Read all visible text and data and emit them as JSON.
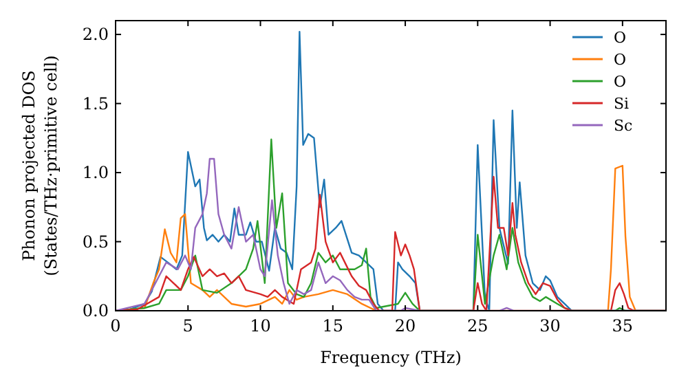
{
  "chart_data": {
    "type": "line",
    "xlabel": "Frequency (THz)",
    "ylabel": "Phonon projected DOS\n(States/THz·primitive cell)",
    "xlim": [
      0,
      38
    ],
    "ylim": [
      0,
      2.1
    ],
    "xticks": [
      0,
      5,
      10,
      15,
      20,
      25,
      30,
      35
    ],
    "yticks": [
      {
        "value": 0,
        "label": "0.0"
      },
      {
        "value": 0.5,
        "label": "0.5"
      },
      {
        "value": 1,
        "label": "1.0"
      },
      {
        "value": 1.5,
        "label": "1.5"
      },
      {
        "value": 2,
        "label": "2.0"
      }
    ],
    "grid": false,
    "legend": "top right",
    "marker": "none",
    "line_style": "solid",
    "series": [
      {
        "name": "O",
        "color": "#1f77b4",
        "x": [
          0,
          1,
          2,
          2.5,
          3.1,
          3.6,
          4.2,
          4.6,
          5,
          5.5,
          5.8,
          6.1,
          6.3,
          6.7,
          7.1,
          7.5,
          7.9,
          8.2,
          8.5,
          9,
          9.3,
          9.7,
          10.1,
          10.6,
          11,
          11.4,
          11.8,
          12.2,
          12.5,
          12.7,
          12.95,
          13.3,
          13.7,
          14.1,
          14.4,
          14.7,
          15.2,
          15.6,
          16.3,
          16.8,
          17.3,
          17.8,
          18.1,
          18.5,
          19.3,
          19.5,
          19.8,
          20.3,
          20.7,
          21,
          24.7,
          25,
          25.5,
          25.8,
          26.1,
          26.5,
          27.1,
          27.4,
          27.7,
          27.9,
          28.3,
          28.8,
          29.3,
          29.7,
          30,
          30.5,
          31,
          31.5,
          38
        ],
        "values": [
          0,
          0.01,
          0.05,
          0.14,
          0.39,
          0.35,
          0.3,
          0.4,
          1.15,
          0.9,
          0.95,
          0.6,
          0.51,
          0.55,
          0.5,
          0.55,
          0.5,
          0.74,
          0.55,
          0.55,
          0.64,
          0.5,
          0.5,
          0.29,
          0.6,
          0.45,
          0.42,
          0.3,
          0.9,
          2.02,
          1.2,
          1.28,
          1.25,
          0.75,
          0.95,
          0.55,
          0.6,
          0.65,
          0.42,
          0.4,
          0.35,
          0.3,
          0.05,
          0,
          0,
          0.35,
          0.3,
          0.25,
          0.2,
          0,
          0,
          1.2,
          0.1,
          0,
          1.38,
          0.6,
          0.34,
          1.45,
          0.6,
          0.93,
          0.4,
          0.2,
          0.15,
          0.25,
          0.22,
          0.1,
          0.05,
          0,
          0
        ]
      },
      {
        "name": "O",
        "color": "#ff7f0e",
        "x": [
          0,
          2,
          2.6,
          3,
          3.4,
          3.8,
          4.2,
          4.5,
          4.8,
          5.2,
          6,
          6.5,
          7,
          8,
          9,
          10,
          11,
          11.5,
          12,
          12.5,
          13,
          14,
          15,
          16,
          17,
          18,
          34,
          34.2,
          34.5,
          35,
          35.2,
          35.5,
          35.9,
          38
        ],
        "values": [
          0,
          0.02,
          0.2,
          0.3,
          0.59,
          0.42,
          0.35,
          0.67,
          0.7,
          0.2,
          0.15,
          0.1,
          0.15,
          0.05,
          0.03,
          0.05,
          0.1,
          0.05,
          0.15,
          0.08,
          0.1,
          0.12,
          0.15,
          0.12,
          0.05,
          0,
          0,
          0.3,
          1.03,
          1.05,
          0.54,
          0.1,
          0,
          0
        ]
      },
      {
        "name": "O",
        "color": "#2ca02c",
        "x": [
          0,
          2,
          3,
          3.5,
          4.5,
          5,
          5.5,
          6,
          7,
          8,
          9,
          9.5,
          9.8,
          10.3,
          10.75,
          11.1,
          11.5,
          11.9,
          12.5,
          13,
          13.5,
          14,
          14.5,
          15,
          15.5,
          16,
          16.5,
          17,
          17.3,
          17.6,
          18,
          19.5,
          20,
          20.5,
          21,
          24.7,
          25,
          25.5,
          26.1,
          26.5,
          27,
          27.4,
          27.8,
          28.3,
          28.8,
          29.3,
          29.7,
          30.5,
          31,
          31.5,
          34.5,
          34.8,
          35.2,
          38
        ],
        "values": [
          0,
          0.02,
          0.05,
          0.15,
          0.15,
          0.25,
          0.4,
          0.15,
          0.13,
          0.2,
          0.3,
          0.45,
          0.65,
          0.2,
          1.24,
          0.6,
          0.85,
          0.2,
          0.12,
          0.1,
          0.2,
          0.42,
          0.35,
          0.4,
          0.3,
          0.3,
          0.3,
          0.33,
          0.45,
          0.1,
          0.02,
          0.05,
          0.13,
          0.05,
          0,
          0,
          0.55,
          0.05,
          0.4,
          0.55,
          0.3,
          0.6,
          0.35,
          0.2,
          0.1,
          0.07,
          0.1,
          0.05,
          0.02,
          0,
          0,
          0.02,
          0,
          0
        ]
      },
      {
        "name": "Si",
        "color": "#d62728",
        "x": [
          0,
          1.5,
          3,
          3.5,
          4,
          4.5,
          5,
          5.4,
          6,
          6.5,
          7,
          7.5,
          8,
          8.5,
          9,
          10,
          10.5,
          11,
          11.5,
          12.3,
          12.8,
          13.5,
          13.8,
          14.1,
          14.5,
          15,
          15.5,
          16.3,
          16.8,
          17.3,
          17.8,
          18.2,
          19.1,
          19.3,
          19.7,
          20,
          20.3,
          20.6,
          21,
          24.7,
          25,
          25.3,
          25.6,
          26.1,
          26.4,
          26.8,
          27.1,
          27.4,
          27.6,
          28,
          28.5,
          29,
          29.5,
          30,
          30.5,
          31,
          31.5,
          34.2,
          34.5,
          34.8,
          35.1,
          35.4,
          35.8,
          38
        ],
        "values": [
          0,
          0.01,
          0.1,
          0.25,
          0.2,
          0.15,
          0.3,
          0.39,
          0.25,
          0.3,
          0.25,
          0.27,
          0.2,
          0.25,
          0.15,
          0.12,
          0.1,
          0.15,
          0.1,
          0.05,
          0.3,
          0.35,
          0.45,
          0.84,
          0.5,
          0.35,
          0.42,
          0.25,
          0.18,
          0.15,
          0.05,
          0,
          0,
          0.57,
          0.4,
          0.48,
          0.4,
          0.3,
          0,
          0,
          0.2,
          0.05,
          0,
          0.97,
          0.6,
          0.6,
          0.4,
          0.78,
          0.55,
          0.35,
          0.2,
          0.12,
          0.2,
          0.18,
          0.08,
          0.02,
          0,
          0,
          0.15,
          0.2,
          0.12,
          0.02,
          0,
          0
        ]
      },
      {
        "name": "Sc",
        "color": "#9467bd",
        "x": [
          0,
          2,
          3,
          3.5,
          4.3,
          4.8,
          5.2,
          5.5,
          6,
          6.3,
          6.5,
          6.8,
          7.1,
          7.5,
          8,
          8.5,
          9,
          9.5,
          10,
          10.3,
          10.8,
          11.2,
          11.6,
          12,
          12.5,
          13,
          13.5,
          14,
          14.5,
          15,
          15.5,
          16,
          16.5,
          17,
          17.5,
          18,
          19.7,
          20,
          20.5,
          21,
          26.5,
          27,
          27.5,
          38
        ],
        "values": [
          0,
          0.05,
          0.25,
          0.35,
          0.3,
          0.4,
          0.3,
          0.6,
          0.7,
          0.85,
          1.1,
          1.1,
          0.7,
          0.55,
          0.45,
          0.75,
          0.5,
          0.55,
          0.3,
          0.25,
          0.8,
          0.4,
          0.2,
          0.05,
          0.15,
          0.12,
          0.15,
          0.35,
          0.2,
          0.25,
          0.22,
          0.15,
          0.1,
          0.08,
          0.08,
          0,
          0,
          0.02,
          0.01,
          0,
          0,
          0.02,
          0,
          0
        ]
      }
    ]
  }
}
